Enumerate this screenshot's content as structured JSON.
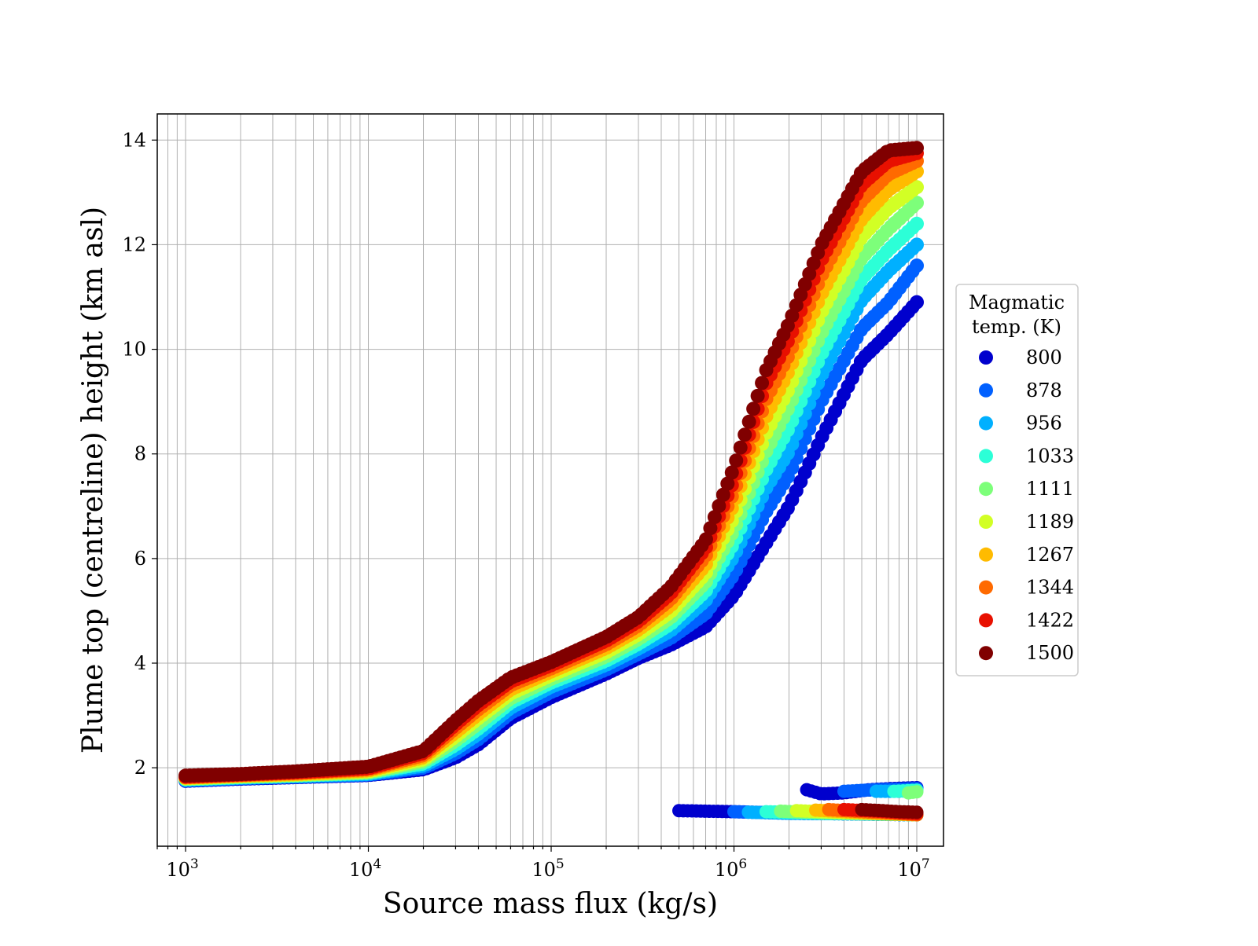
{
  "chart_data": {
    "type": "scatter",
    "title": "",
    "xlabel": "Source mass flux (kg/s)",
    "ylabel": "Plume top (centreline) height (km asl)",
    "xscale": "log",
    "xlim": [
      700,
      14000000
    ],
    "ylim": [
      0.5,
      14.5
    ],
    "xticks": [
      {
        "value": 1000,
        "base": "10",
        "exp": "3"
      },
      {
        "value": 10000,
        "base": "10",
        "exp": "4"
      },
      {
        "value": 100000,
        "base": "10",
        "exp": "5"
      },
      {
        "value": 1000000,
        "base": "10",
        "exp": "6"
      },
      {
        "value": 10000000,
        "base": "10",
        "exp": "7"
      }
    ],
    "yticks": [
      2,
      4,
      6,
      8,
      10,
      12,
      14
    ],
    "grid": "on, major and minor x gridlines",
    "legend": {
      "title_line1": "Magmatic",
      "title_line2": "temp. (K)",
      "placement": "right outside plot"
    },
    "x_grid_points": [
      1000,
      2000,
      4000,
      10000,
      20000,
      30000,
      40000,
      60000,
      100000,
      200000,
      300000,
      450000,
      700000,
      1000000,
      1500000,
      2000000,
      3000000,
      5000000,
      7000000,
      10000000
    ],
    "series": [
      {
        "name": "800",
        "color": "#0000cd",
        "y": [
          1.75,
          1.79,
          1.82,
          1.86,
          1.97,
          2.2,
          2.45,
          2.95,
          3.35,
          3.8,
          4.1,
          4.35,
          4.7,
          5.3,
          6.3,
          7.0,
          8.3,
          9.8,
          10.3,
          10.9
        ],
        "low_branch_x": [
          500000,
          700000,
          1000000,
          2000000,
          4000000,
          10000000
        ],
        "low_branch_y": [
          1.18,
          1.17,
          1.16,
          1.13,
          1.12,
          1.1
        ],
        "upper_branch_x": [
          2500000,
          3000000,
          4000000,
          5500000,
          7000000,
          10000000
        ],
        "upper_branch_y": [
          1.58,
          1.5,
          1.52,
          1.58,
          1.6,
          1.62
        ]
      },
      {
        "name": "878",
        "color": "#0060ff",
        "y": [
          1.76,
          1.8,
          1.83,
          1.87,
          2.0,
          2.28,
          2.55,
          3.05,
          3.45,
          3.88,
          4.18,
          4.48,
          4.95,
          5.7,
          6.9,
          7.6,
          9.0,
          10.4,
          10.9,
          11.6
        ],
        "low_branch_x": [
          1000000,
          2000000,
          4000000,
          10000000
        ],
        "low_branch_y": [
          1.16,
          1.13,
          1.12,
          1.1
        ],
        "upper_branch_x": [
          4000000,
          6000000,
          10000000
        ],
        "upper_branch_y": [
          1.55,
          1.58,
          1.6
        ]
      },
      {
        "name": "956",
        "color": "#00b0ff",
        "y": [
          1.77,
          1.81,
          1.84,
          1.88,
          2.04,
          2.36,
          2.65,
          3.15,
          3.55,
          3.97,
          4.28,
          4.62,
          5.2,
          6.05,
          7.35,
          8.05,
          9.5,
          10.95,
          11.5,
          12.0
        ],
        "low_branch_x": [
          1200000,
          2000000,
          4000000,
          10000000
        ],
        "low_branch_y": [
          1.15,
          1.13,
          1.12,
          1.1
        ],
        "upper_branch_x": [
          6000000,
          8000000,
          10000000
        ],
        "upper_branch_y": [
          1.55,
          1.55,
          1.57
        ]
      },
      {
        "name": "1033",
        "color": "#2cffd7",
        "y": [
          1.78,
          1.82,
          1.85,
          1.9,
          2.08,
          2.44,
          2.75,
          3.25,
          3.63,
          4.05,
          4.37,
          4.75,
          5.38,
          6.3,
          7.7,
          8.5,
          9.9,
          11.35,
          11.9,
          12.4
        ],
        "low_branch_x": [
          1500000,
          3000000,
          5000000,
          10000000
        ],
        "low_branch_y": [
          1.16,
          1.13,
          1.12,
          1.1
        ],
        "upper_branch_x": [
          7500000,
          10000000
        ],
        "upper_branch_y": [
          1.55,
          1.57
        ]
      },
      {
        "name": "1111",
        "color": "#7dff7a",
        "y": [
          1.79,
          1.83,
          1.86,
          1.91,
          2.12,
          2.52,
          2.85,
          3.33,
          3.7,
          4.13,
          4.46,
          4.87,
          5.55,
          6.55,
          8.05,
          8.9,
          10.3,
          11.75,
          12.3,
          12.8
        ],
        "low_branch_x": [
          1800000,
          3000000,
          6000000,
          10000000
        ],
        "low_branch_y": [
          1.17,
          1.14,
          1.12,
          1.1
        ],
        "upper_branch_x": [
          9000000,
          10000000
        ],
        "upper_branch_y": [
          1.52,
          1.54
        ]
      },
      {
        "name": "1189",
        "color": "#d2ff25",
        "y": [
          1.8,
          1.84,
          1.87,
          1.93,
          2.16,
          2.6,
          2.95,
          3.42,
          3.77,
          4.21,
          4.55,
          4.98,
          5.72,
          6.8,
          8.4,
          9.25,
          10.7,
          12.15,
          12.7,
          13.1
        ],
        "low_branch_x": [
          2200000,
          4000000,
          6500000,
          10000000
        ],
        "low_branch_y": [
          1.18,
          1.14,
          1.12,
          1.1
        ],
        "upper_branch_x": [],
        "upper_branch_y": []
      },
      {
        "name": "1267",
        "color": "#ffbb00",
        "y": [
          1.81,
          1.85,
          1.88,
          1.95,
          2.2,
          2.68,
          3.03,
          3.5,
          3.84,
          4.29,
          4.64,
          5.1,
          5.88,
          7.05,
          8.72,
          9.6,
          11.05,
          12.5,
          13.05,
          13.4
        ],
        "low_branch_x": [
          2800000,
          4500000,
          7000000,
          10000000
        ],
        "low_branch_y": [
          1.19,
          1.15,
          1.12,
          1.1
        ],
        "upper_branch_x": [],
        "upper_branch_y": []
      },
      {
        "name": "1344",
        "color": "#ff6a00",
        "y": [
          1.82,
          1.86,
          1.9,
          1.97,
          2.24,
          2.76,
          3.12,
          3.58,
          3.9,
          4.36,
          4.72,
          5.22,
          6.05,
          7.28,
          9.05,
          9.9,
          11.4,
          12.85,
          13.35,
          13.6
        ],
        "low_branch_x": [
          3300000,
          5000000,
          7500000,
          10000000
        ],
        "low_branch_y": [
          1.2,
          1.16,
          1.13,
          1.1
        ],
        "upper_branch_x": [],
        "upper_branch_y": []
      },
      {
        "name": "1422",
        "color": "#e81000",
        "y": [
          1.83,
          1.87,
          1.91,
          1.99,
          2.28,
          2.83,
          3.2,
          3.65,
          3.96,
          4.43,
          4.8,
          5.33,
          6.2,
          7.5,
          9.35,
          10.2,
          11.7,
          13.15,
          13.6,
          13.75
        ],
        "low_branch_x": [
          4000000,
          6000000,
          8000000,
          10000000
        ],
        "low_branch_y": [
          1.2,
          1.17,
          1.14,
          1.12
        ],
        "upper_branch_x": [],
        "upper_branch_y": []
      },
      {
        "name": "1500",
        "color": "#800000",
        "y": [
          1.85,
          1.88,
          1.93,
          2.02,
          2.32,
          2.9,
          3.28,
          3.72,
          4.02,
          4.5,
          4.88,
          5.45,
          6.35,
          7.75,
          9.6,
          10.5,
          12.0,
          13.4,
          13.8,
          13.85
        ],
        "low_branch_x": [
          5000000,
          6500000,
          8000000,
          10000000
        ],
        "low_branch_y": [
          1.2,
          1.18,
          1.16,
          1.15
        ],
        "upper_branch_x": [],
        "upper_branch_y": []
      }
    ]
  }
}
